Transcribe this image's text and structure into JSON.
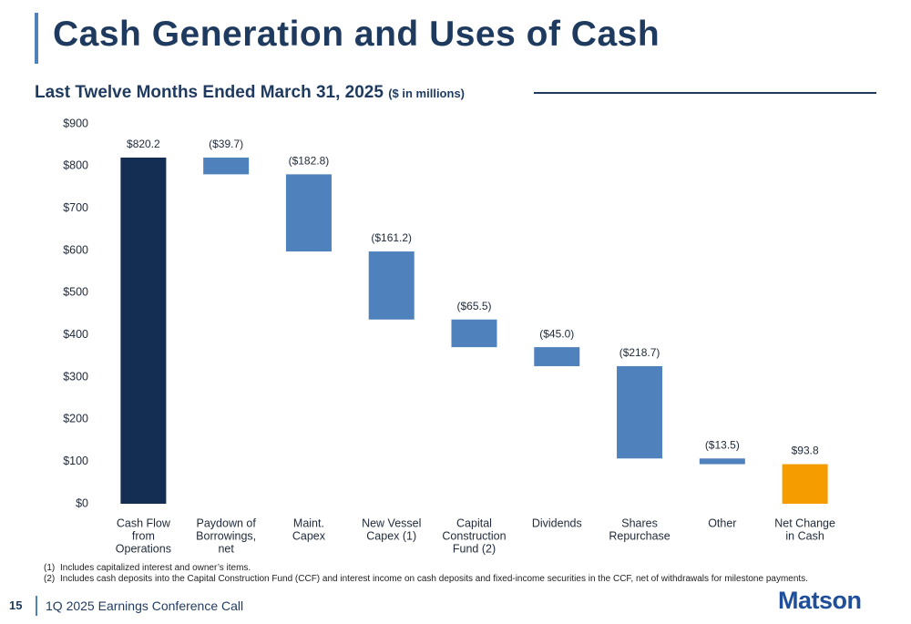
{
  "header": {
    "title": "Cash Generation and Uses of Cash",
    "subtitle": "Last Twelve Months Ended March 31, 2025",
    "unit_note": "($ in millions)"
  },
  "chart_data": {
    "type": "waterfall",
    "categories": [
      [
        "Cash Flow",
        "from",
        "Operations"
      ],
      [
        "Paydown of",
        "Borrowings,",
        "net"
      ],
      [
        "Maint.",
        "Capex"
      ],
      [
        "New Vessel",
        "Capex (1)"
      ],
      [
        "Capital",
        "Construction",
        "Fund (2)"
      ],
      [
        "Dividends"
      ],
      [
        "Shares",
        "Repurchase"
      ],
      [
        "Other"
      ],
      [
        "Net Change",
        "in Cash"
      ]
    ],
    "values": [
      820.2,
      -39.7,
      -182.8,
      -161.2,
      -65.5,
      -45.0,
      -218.7,
      -13.5,
      93.8
    ],
    "value_labels": [
      "$820.2",
      "($39.7)",
      "($182.8)",
      "($161.2)",
      "($65.5)",
      "($45.0)",
      "($218.7)",
      "($13.5)",
      "$93.8"
    ],
    "colors": [
      "#142d52",
      "#4f81bd",
      "#4f81bd",
      "#4f81bd",
      "#4f81bd",
      "#4f81bd",
      "#4f81bd",
      "#4f81bd",
      "#f59c00"
    ],
    "ylim": [
      0,
      900
    ],
    "yticks": [
      {
        "value": 0,
        "label": "$0"
      },
      {
        "value": 100,
        "label": "$100"
      },
      {
        "value": 200,
        "label": "$200"
      },
      {
        "value": 300,
        "label": "$300"
      },
      {
        "value": 400,
        "label": "$400"
      },
      {
        "value": 500,
        "label": "$500"
      },
      {
        "value": 600,
        "label": "$600"
      },
      {
        "value": 700,
        "label": "$700"
      },
      {
        "value": 800,
        "label": "$800"
      },
      {
        "value": 900,
        "label": "$900"
      }
    ],
    "grid": false
  },
  "footnotes": [
    {
      "marker": "(1)",
      "text": "Includes capitalized interest and owner’s items."
    },
    {
      "marker": "(2)",
      "text": "Includes cash deposits into the Capital Construction Fund (CCF) and interest income on cash deposits and fixed-income securities in the CCF, net of withdrawals for milestone payments."
    }
  ],
  "footer": {
    "page": "15",
    "text": "1Q 2025 Earnings Conference Call",
    "logo": "Matson"
  }
}
